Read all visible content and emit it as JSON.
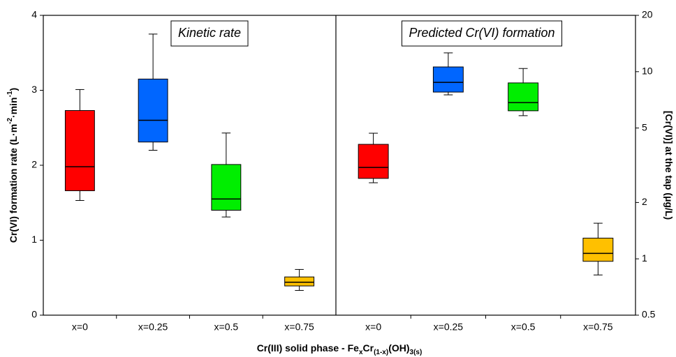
{
  "chart_data": [
    {
      "type": "box",
      "title": "Kinetic rate",
      "categories": [
        "x=0",
        "x=0.25",
        "x=0.5",
        "x=0.75"
      ],
      "values": [
        {
          "min": 1.53,
          "q1": 1.66,
          "median": 1.98,
          "q3": 2.73,
          "max": 3.01
        },
        {
          "min": 2.2,
          "q1": 2.31,
          "median": 2.6,
          "q3": 3.15,
          "max": 3.75
        },
        {
          "min": 1.31,
          "q1": 1.4,
          "median": 1.55,
          "q3": 2.01,
          "max": 2.43
        },
        {
          "min": 0.33,
          "q1": 0.39,
          "median": 0.44,
          "q3": 0.51,
          "max": 0.61
        }
      ],
      "colors": [
        "#ff0000",
        "#0066ff",
        "#00ee00",
        "#ffc000"
      ],
      "ylim": [
        0,
        4
      ],
      "yticks": [
        0,
        1,
        2,
        3,
        4
      ],
      "log": false,
      "axis_side": "left",
      "ylabel": [
        "Cr(VI) formation rate (L·m",
        "-2",
        "·min",
        "-1",
        ")"
      ],
      "xlabel": [
        "Cr(III) solid phase - Fe",
        "x",
        "Cr",
        "(1-x)",
        "(OH)",
        "3(s)"
      ]
    },
    {
      "type": "box",
      "title": "Predicted Cr(VI) formation",
      "categories": [
        "x=0",
        "x=0.25",
        "x=0.5",
        "x=0.75"
      ],
      "values": [
        {
          "min": 2.55,
          "q1": 2.69,
          "median": 3.08,
          "q3": 4.09,
          "max": 4.69
        },
        {
          "min": 7.52,
          "q1": 7.78,
          "median": 8.77,
          "q3": 10.6,
          "max": 12.6
        },
        {
          "min": 5.82,
          "q1": 6.18,
          "median": 6.84,
          "q3": 8.71,
          "max": 10.4
        },
        {
          "min": 0.82,
          "q1": 0.97,
          "median": 1.07,
          "q3": 1.29,
          "max": 1.55
        }
      ],
      "colors": [
        "#ff0000",
        "#0066ff",
        "#00ee00",
        "#ffc000"
      ],
      "ylim": [
        0.5,
        20
      ],
      "yticks": [
        0.5,
        1,
        2,
        5,
        10,
        20
      ],
      "log": true,
      "axis_side": "right",
      "ylabel": [
        "[Cr(VI)] at the tap (μg/L)"
      ]
    }
  ]
}
